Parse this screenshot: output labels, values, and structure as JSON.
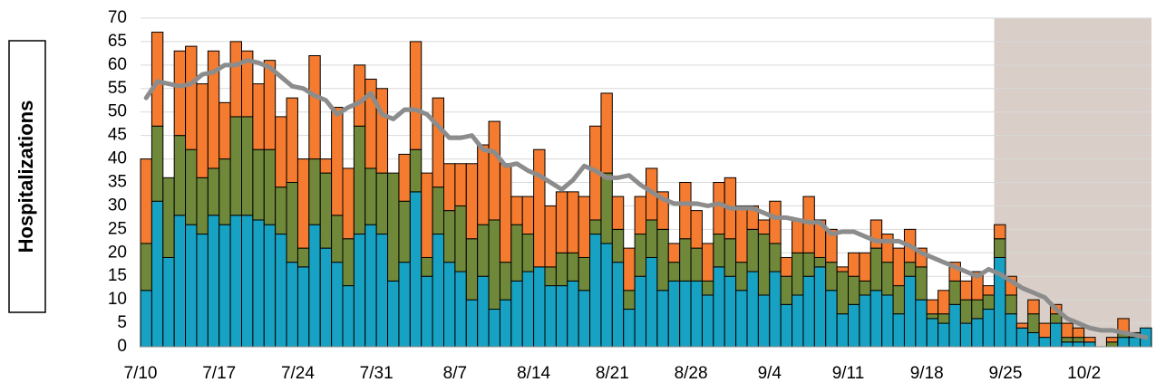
{
  "chart_data": {
    "type": "stacked_bar_line",
    "y_label": "Hospitalizations",
    "categories": [
      "7/10",
      null,
      null,
      null,
      null,
      null,
      null,
      "7/17",
      null,
      null,
      null,
      null,
      null,
      null,
      "7/24",
      null,
      null,
      null,
      null,
      null,
      null,
      "7/31",
      null,
      null,
      null,
      null,
      null,
      null,
      "8/7",
      null,
      null,
      null,
      null,
      null,
      null,
      "8/14",
      null,
      null,
      null,
      null,
      null,
      null,
      "8/21",
      null,
      null,
      null,
      null,
      null,
      null,
      "8/28",
      null,
      null,
      null,
      null,
      null,
      null,
      "9/4",
      null,
      null,
      null,
      null,
      null,
      null,
      "9/11",
      null,
      null,
      null,
      null,
      null,
      null,
      "9/18",
      null,
      null,
      null,
      null,
      null,
      null,
      "9/25",
      null,
      null,
      null,
      null,
      null,
      null,
      "10/2",
      null,
      null,
      null,
      null,
      null
    ],
    "series": [
      {
        "color": "#17a2c4",
        "values": [
          12,
          31,
          19,
          28,
          26,
          24,
          28,
          26,
          28,
          28,
          27,
          26,
          24,
          18,
          17,
          26,
          21,
          18,
          13,
          24,
          26,
          24,
          14,
          18,
          33,
          15,
          24,
          18,
          16,
          10,
          15,
          8,
          10,
          14,
          16,
          17,
          13,
          13,
          14,
          12,
          24,
          22,
          18,
          8,
          15,
          19,
          12,
          14,
          14,
          14,
          11,
          17,
          15,
          12,
          16,
          11,
          16,
          9,
          11,
          15,
          17,
          12,
          7,
          9,
          11,
          12,
          11,
          7,
          15,
          10,
          6,
          5,
          9,
          5,
          6,
          8,
          19,
          7,
          4,
          3,
          2,
          5,
          1,
          1,
          1,
          0,
          0,
          2,
          2,
          4
        ]
      },
      {
        "color": "#70883a",
        "values": [
          10,
          16,
          17,
          17,
          16,
          12,
          10,
          14,
          21,
          21,
          15,
          16,
          10,
          17,
          4,
          14,
          16,
          10,
          10,
          23,
          12,
          13,
          23,
          13,
          9,
          4,
          10,
          11,
          14,
          13,
          11,
          19,
          8,
          12,
          8,
          0,
          4,
          7,
          6,
          7,
          3,
          15,
          7,
          4,
          9,
          8,
          13,
          4,
          9,
          7,
          3,
          7,
          8,
          6,
          9,
          13,
          6,
          6,
          9,
          5,
          2,
          6,
          9,
          6,
          3,
          9,
          7,
          6,
          3,
          7,
          1,
          2,
          5,
          5,
          4,
          3,
          4,
          4,
          0,
          4,
          0,
          2,
          1,
          1,
          0,
          0,
          1,
          1,
          1,
          0
        ]
      },
      {
        "color": "#f47b2f",
        "values": [
          18,
          20,
          0,
          18,
          22,
          20,
          25,
          12,
          16,
          14,
          14,
          19,
          15,
          18,
          19,
          22,
          3,
          23,
          15,
          13,
          19,
          18,
          0,
          10,
          23,
          18,
          19,
          10,
          9,
          16,
          17,
          21,
          21,
          6,
          8,
          25,
          13,
          13,
          13,
          13,
          20,
          17,
          7,
          9,
          8,
          11,
          8,
          4,
          12,
          8,
          8,
          11,
          13,
          12,
          5,
          3,
          9,
          4,
          7,
          12,
          8,
          7,
          1,
          5,
          6,
          6,
          6,
          8,
          7,
          4,
          3,
          5,
          4,
          4,
          6,
          2,
          3,
          4,
          1,
          3,
          3,
          2,
          3,
          2,
          1,
          0,
          1,
          3,
          0,
          0
        ]
      },
      {
        "type": "line",
        "color": "#8c8c8c",
        "values": [
          53,
          56.5,
          56,
          55.5,
          56,
          58,
          58.5,
          60,
          60,
          61,
          60.5,
          59.5,
          57.5,
          55.5,
          55,
          53.5,
          52.5,
          49.5,
          51,
          52,
          54,
          49.5,
          48.5,
          50.5,
          50.5,
          49.5,
          47,
          44.5,
          44.5,
          45,
          42,
          41.5,
          38.5,
          39,
          37.5,
          36.5,
          35,
          33.5,
          35.5,
          38.5,
          37.5,
          36,
          36,
          36.5,
          34.5,
          33,
          31.5,
          30.5,
          30.5,
          30.5,
          30,
          30.5,
          29.5,
          29.5,
          29.5,
          28.5,
          27.5,
          27.5,
          27,
          26.5,
          26.5,
          24,
          24.5,
          24.5,
          23.5,
          22.5,
          22.5,
          22.5,
          21.5,
          20,
          19,
          18,
          17,
          16,
          15,
          16.5,
          15.5,
          14,
          12.5,
          11.5,
          10.5,
          8,
          6,
          5,
          4,
          3.5,
          3.5,
          3,
          2.5,
          2
        ]
      }
    ],
    "shaded_from_category": 76,
    "shade_color": "#d9cec8",
    "ylim": [
      0,
      70
    ],
    "yticks": [
      0,
      5,
      10,
      15,
      20,
      25,
      30,
      35,
      40,
      45,
      50,
      55,
      60,
      65,
      70
    ],
    "grid": true
  }
}
